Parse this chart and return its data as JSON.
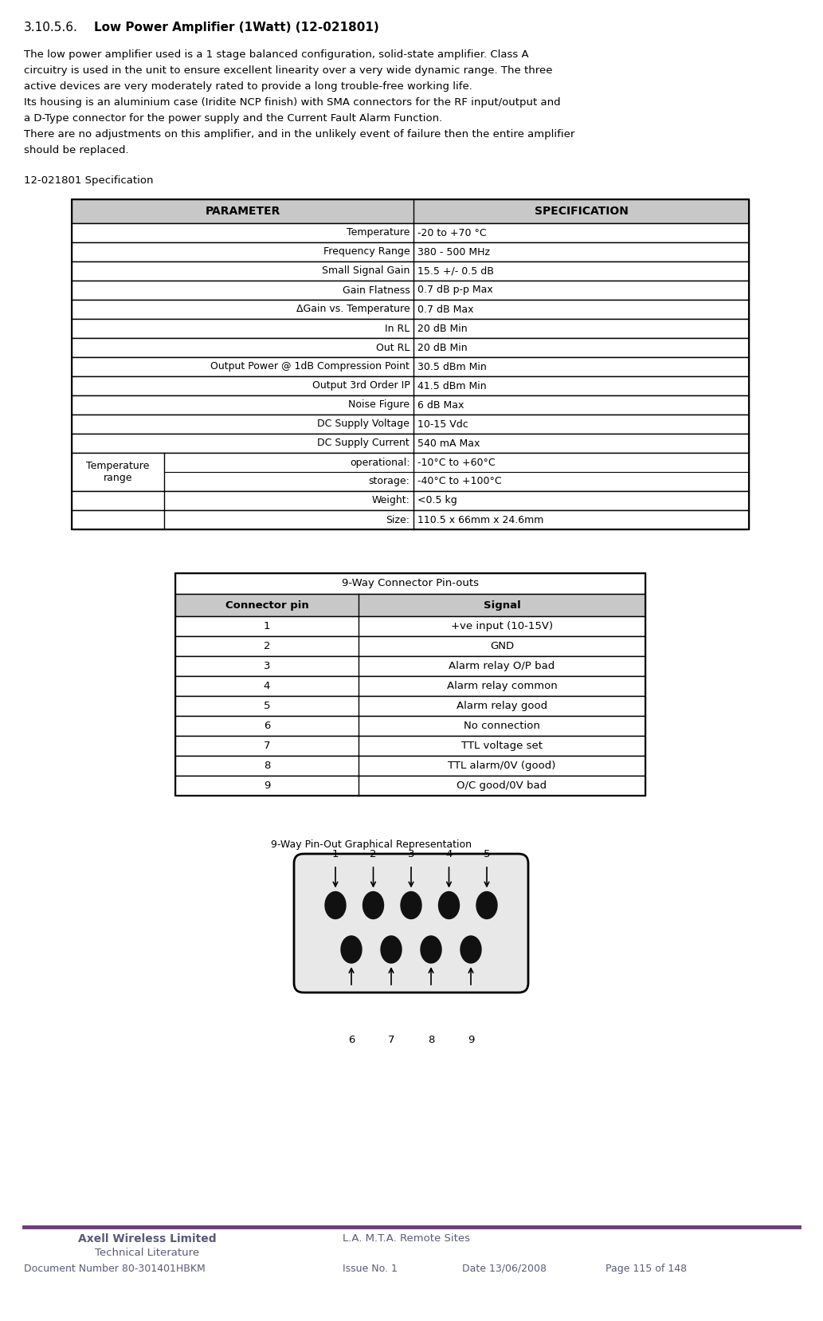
{
  "title_num": "3.10.5.6.",
  "title_tab": "        ",
  "title_rest": "Low Power Amplifier (1Watt) (12-021801)",
  "body_paragraphs": [
    [
      "The low power amplifier used is a 1 stage balanced configuration, solid-state amplifier. Class A",
      "circuitry is used in the unit to ensure excellent linearity over a very wide dynamic range. The three",
      "active devices are very moderately rated to provide a long trouble-free working life."
    ],
    [
      "Its housing is an aluminium case (Iridite NCP finish) with SMA connectors for the RF input/output and",
      "a D-Type connector for the power supply and the Current Fault Alarm Function."
    ],
    [
      "There are no adjustments on this amplifier, and in the unlikely event of failure then the entire amplifier",
      "should be replaced."
    ]
  ],
  "spec_title": "12-021801 Specification",
  "spec_header": [
    "PARAMETER",
    "SPECIFICATION"
  ],
  "spec_rows_normal": [
    [
      "Temperature",
      "-20 to +70 °C"
    ],
    [
      "Frequency Range",
      "380 - 500 MHz"
    ],
    [
      "Small Signal Gain",
      "15.5 +/- 0.5 dB"
    ],
    [
      "Gain Flatness",
      "0.7 dB p-p Max"
    ],
    [
      "ΔGain vs. Temperature",
      "0.7 dB Max"
    ],
    [
      "In RL",
      "20 dB Min"
    ],
    [
      "Out RL",
      "20 dB Min"
    ],
    [
      "Output Power @ 1dB Compression Point",
      "30.5 dBm Min"
    ],
    [
      "Output 3rd Order IP",
      "41.5 dBm Min"
    ],
    [
      "Noise Figure",
      "6 dB Max"
    ],
    [
      "DC Supply Voltage",
      "10-15 Vdc"
    ],
    [
      "DC Supply Current",
      "540 mA Max"
    ]
  ],
  "temp_range_left": "Temperature\nrange",
  "temp_range_mid": [
    "operational:",
    "storage:"
  ],
  "temp_range_right": [
    "-10°C to +60°C",
    "-40°C to +100°C"
  ],
  "spec_rows_bottom": [
    [
      "Weight:",
      "<0.5 kg"
    ],
    [
      "Size:",
      "110.5 x 66mm x 24.6mm"
    ]
  ],
  "conn_title": "9-Way Connector Pin-outs",
  "conn_header": [
    "Connector pin",
    "Signal"
  ],
  "conn_rows": [
    [
      "1",
      "+ve input (10-15V)"
    ],
    [
      "2",
      "GND"
    ],
    [
      "3",
      "Alarm relay O/P bad"
    ],
    [
      "4",
      "Alarm relay common"
    ],
    [
      "5",
      "Alarm relay good"
    ],
    [
      "6",
      "No connection"
    ],
    [
      "7",
      "TTL voltage set"
    ],
    [
      "8",
      "TTL alarm/0V (good)"
    ],
    [
      "9",
      "O/C good/0V bad"
    ]
  ],
  "diag_title": "9-Way Pin-Out Graphical Representation",
  "top_pin_labels": [
    "1",
    "2",
    "3",
    "4",
    "5"
  ],
  "bot_pin_labels": [
    "6",
    "7",
    "8",
    "9"
  ],
  "footer_line_color": "#6B3F7A",
  "footer_company": "Axell Wireless Limited",
  "footer_subtitle": "Technical Literature",
  "footer_doc": "Document Number 80-301401HBKM",
  "footer_right": "L.A. M.T.A. Remote Sites",
  "footer_issue": "Issue No. 1",
  "footer_date": "Date 13/06/2008",
  "footer_page": "Page 115 of 148",
  "bg_color": "#FFFFFF",
  "table_header_bg": "#C8C8C8",
  "table_border_color": "#000000",
  "text_color": "#000000",
  "footer_text_color": "#5A5A7A"
}
